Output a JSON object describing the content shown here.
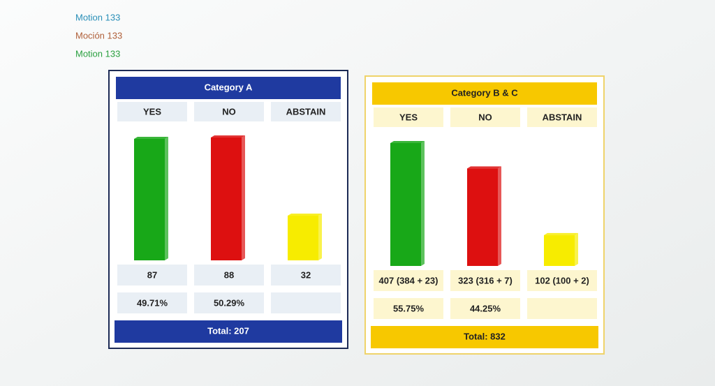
{
  "header": {
    "lines": [
      {
        "text": "Motion 133",
        "color": "#2a8fb8"
      },
      {
        "text": "Moción 133",
        "color": "#b0603a"
      },
      {
        "text": "Motion 133",
        "color": "#2aa040"
      }
    ]
  },
  "chart_data": [
    {
      "type": "bar",
      "title": "Category A",
      "color": "#1f3aa0",
      "title_color": "#ffffff",
      "border_color": "#1c2a55",
      "cell_color": "#e9eff5",
      "categories": [
        "YES",
        "NO",
        "ABSTAIN"
      ],
      "values": [
        87,
        88,
        32
      ],
      "colors": [
        "#18a818",
        "#dd1010",
        "#f7ec00"
      ],
      "percent_labels": [
        "49.71%",
        "50.29%"
      ],
      "total_label": "Total: 207"
    },
    {
      "type": "bar",
      "title": "Category B & C",
      "color": "#f7c800",
      "title_color": "#222222",
      "border_color": "#efd36a",
      "cell_color": "#fdf6cf",
      "categories": [
        "YES",
        "NO",
        "ABSTAIN"
      ],
      "values": [
        407,
        323,
        102
      ],
      "value_labels": [
        "407 (384 + 23)",
        "323 (316 + 7)",
        "102 (100 + 2)"
      ],
      "colors": [
        "#18a818",
        "#dd1010",
        "#f7ec00"
      ],
      "percent_labels": [
        "55.75%",
        "44.25%"
      ],
      "total_label": "Total: 832"
    }
  ]
}
